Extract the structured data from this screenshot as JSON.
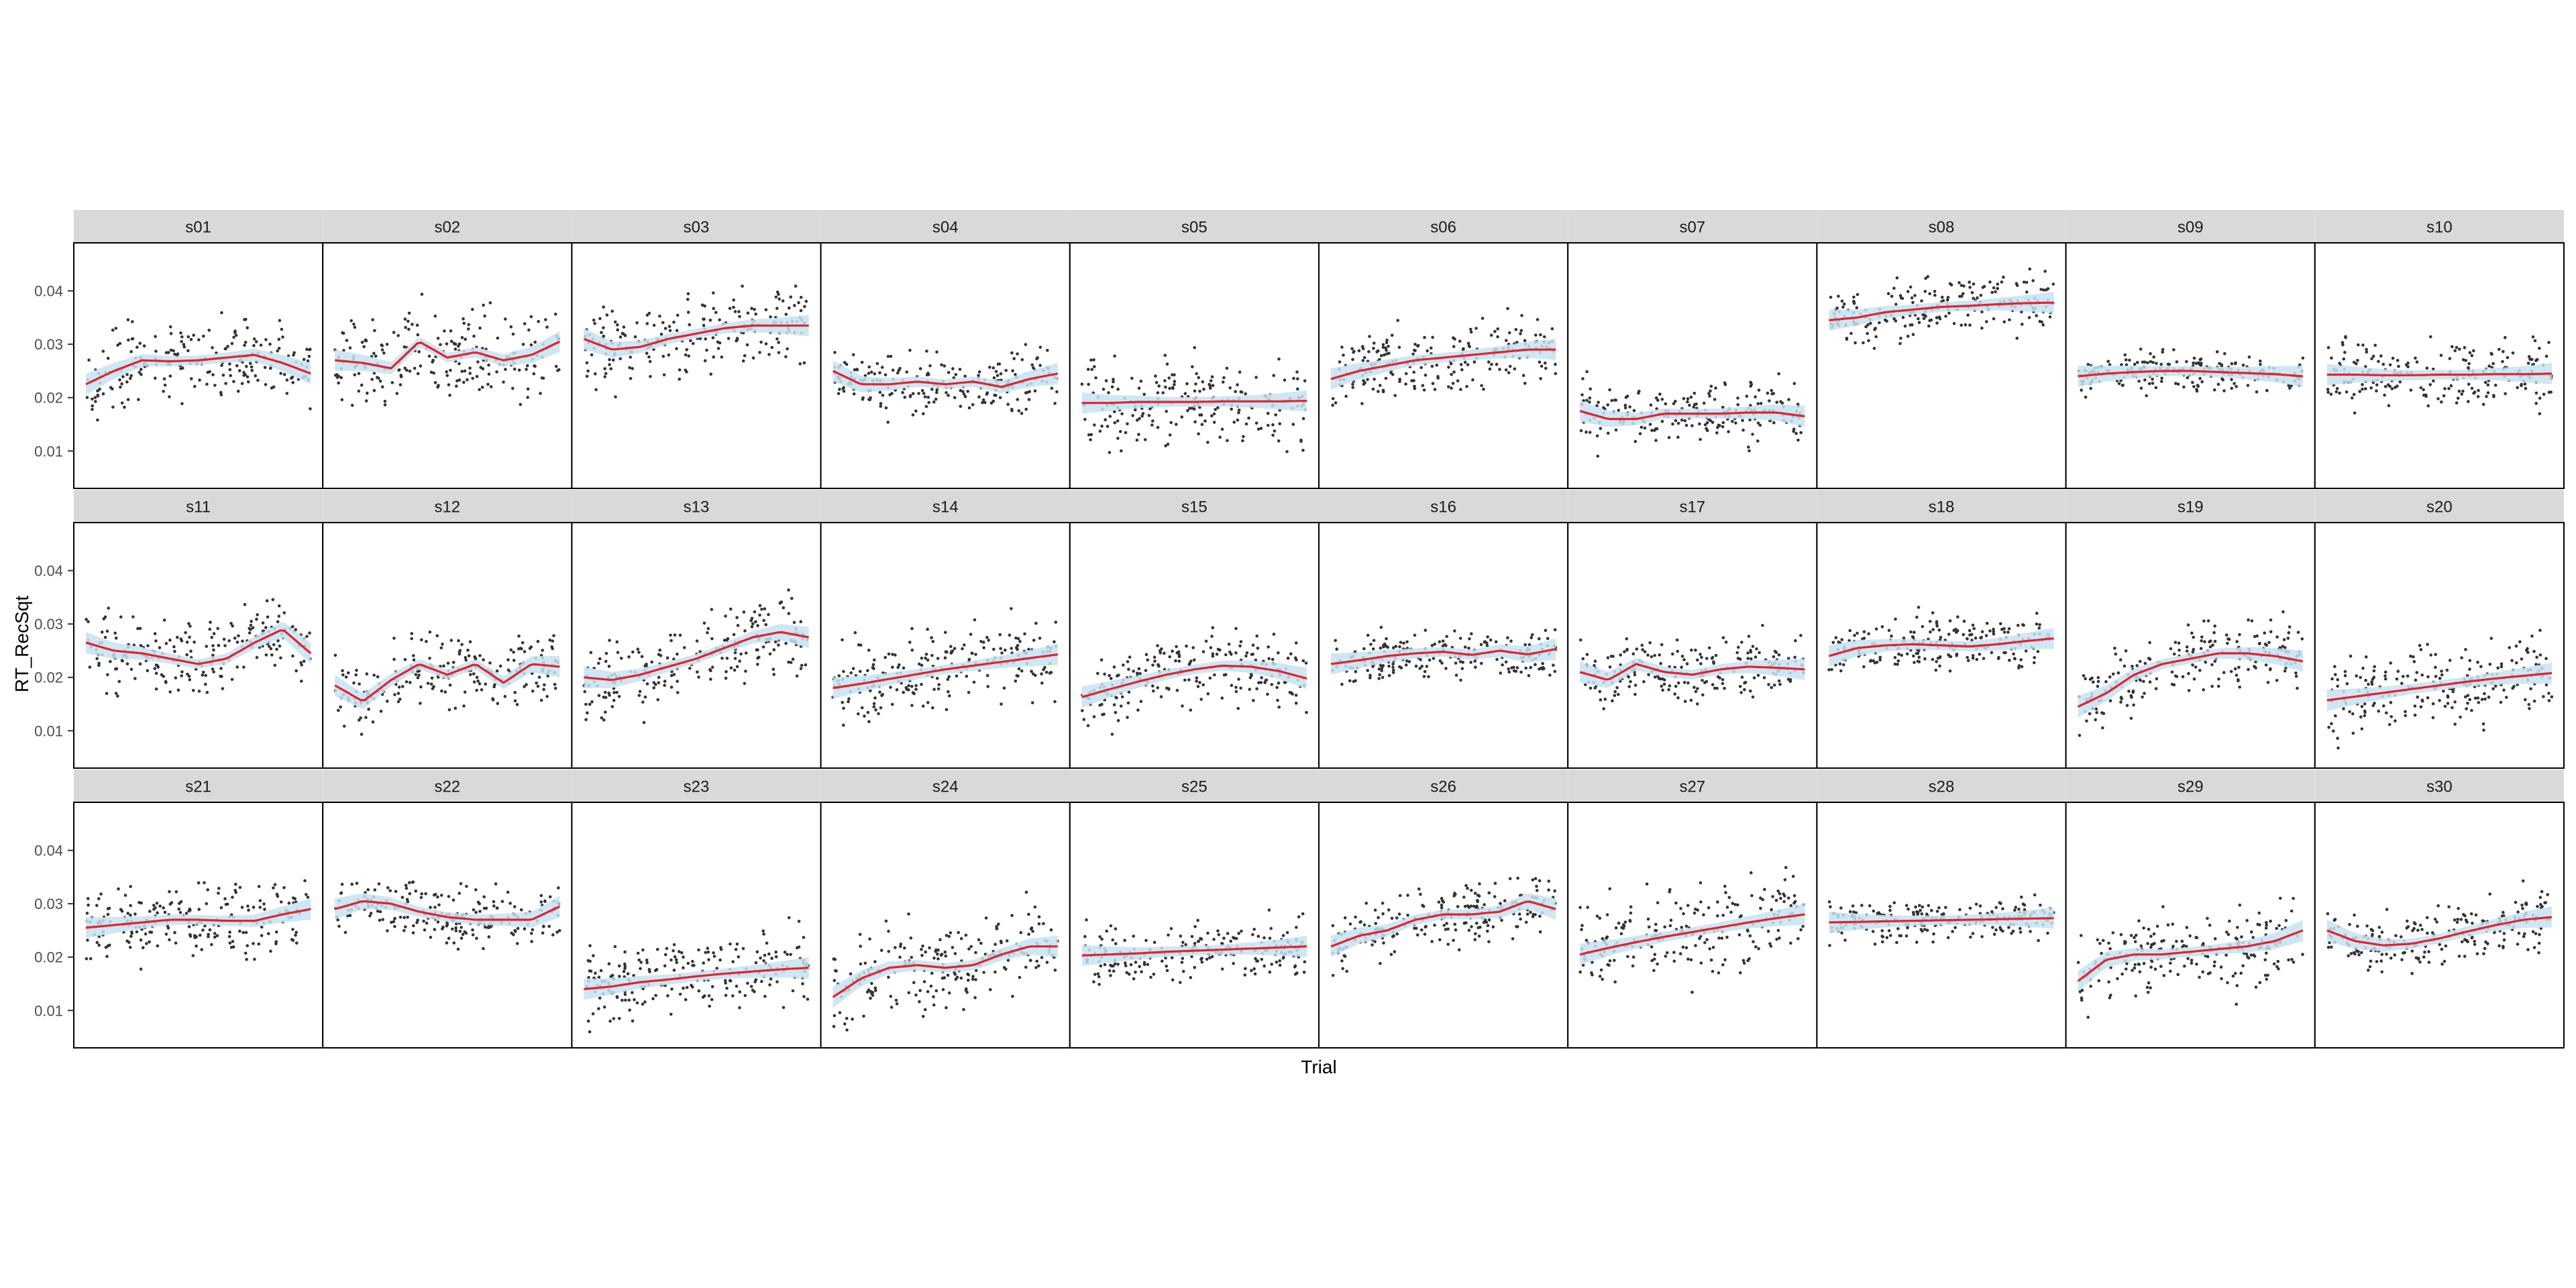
{
  "chart_data": {
    "type": "scatter",
    "layout": "faceted",
    "facet_rows": 3,
    "facet_cols": 10,
    "xlabel": "Trial",
    "ylabel": "RT_RecSqt",
    "ylim": [
      0.003,
      0.049
    ],
    "y_ticks": [
      "0.01",
      "0.02",
      "0.03",
      "0.04"
    ],
    "y_tick_values": [
      0.01,
      0.02,
      0.03,
      0.04
    ],
    "x_range": [
      0,
      1
    ],
    "grid": false,
    "colors": {
      "points": "#333333",
      "smooth_line": "#e8202a",
      "confidence_band": "#c6e3f2",
      "strip": "#d9d9d9",
      "panel_border": "#000000"
    },
    "panels": [
      {
        "label": "s01",
        "smooth": [
          0.0225,
          0.025,
          0.027,
          0.0268,
          0.027,
          0.0275,
          0.028,
          0.0265,
          0.0245
        ],
        "center": 0.026,
        "spread": 0.008
      },
      {
        "label": "s02",
        "smooth": [
          0.027,
          0.0265,
          0.0255,
          0.0305,
          0.0275,
          0.0285,
          0.027,
          0.028,
          0.0305
        ],
        "center": 0.027,
        "spread": 0.009
      },
      {
        "label": "s03",
        "smooth": [
          0.031,
          0.029,
          0.0295,
          0.031,
          0.032,
          0.033,
          0.0335,
          0.0335,
          0.0335
        ],
        "center": 0.032,
        "spread": 0.008
      },
      {
        "label": "s04",
        "smooth": [
          0.025,
          0.0225,
          0.0225,
          0.023,
          0.0225,
          0.023,
          0.022,
          0.0235,
          0.0245
        ],
        "center": 0.023,
        "spread": 0.006
      },
      {
        "label": "s05",
        "smooth": [
          0.019,
          0.019,
          0.0192,
          0.0192,
          0.0192,
          0.0193,
          0.0193,
          0.0193,
          0.0194
        ],
        "center": 0.0185,
        "spread": 0.009
      },
      {
        "label": "s06",
        "smooth": [
          0.0235,
          0.025,
          0.026,
          0.027,
          0.0275,
          0.028,
          0.0285,
          0.029,
          0.029
        ],
        "center": 0.0275,
        "spread": 0.007
      },
      {
        "label": "s07",
        "smooth": [
          0.0175,
          0.016,
          0.016,
          0.017,
          0.017,
          0.017,
          0.0172,
          0.0172,
          0.0165
        ],
        "center": 0.0165,
        "spread": 0.006
      },
      {
        "label": "s08",
        "smooth": [
          0.0345,
          0.035,
          0.036,
          0.0365,
          0.037,
          0.0372,
          0.0375,
          0.0377,
          0.0378
        ],
        "center": 0.036,
        "spread": 0.006
      },
      {
        "label": "s09",
        "smooth": [
          0.024,
          0.0245,
          0.0248,
          0.025,
          0.025,
          0.0248,
          0.0246,
          0.0244,
          0.024
        ],
        "center": 0.0245,
        "spread": 0.004
      },
      {
        "label": "s10",
        "smooth": [
          0.0243,
          0.0243,
          0.0242,
          0.0242,
          0.0243,
          0.0243,
          0.0244,
          0.0244,
          0.0245
        ],
        "center": 0.0245,
        "spread": 0.007
      },
      {
        "label": "s11",
        "smooth": [
          0.0265,
          0.025,
          0.0245,
          0.0235,
          0.0225,
          0.0235,
          0.0265,
          0.029,
          0.0245
        ],
        "center": 0.025,
        "spread": 0.008
      },
      {
        "label": "s12",
        "smooth": [
          0.0185,
          0.0155,
          0.0195,
          0.0225,
          0.0205,
          0.0225,
          0.019,
          0.0225,
          0.022
        ],
        "center": 0.02,
        "spread": 0.007
      },
      {
        "label": "s13",
        "smooth": [
          0.02,
          0.0195,
          0.0205,
          0.022,
          0.0235,
          0.0255,
          0.0275,
          0.0285,
          0.0275
        ],
        "center": 0.0235,
        "spread": 0.008
      },
      {
        "label": "s14",
        "smooth": [
          0.018,
          0.0188,
          0.0197,
          0.0206,
          0.0215,
          0.0222,
          0.0229,
          0.0236,
          0.0243
        ],
        "center": 0.021,
        "spread": 0.008
      },
      {
        "label": "s15",
        "smooth": [
          0.0163,
          0.0178,
          0.0192,
          0.0205,
          0.0215,
          0.0222,
          0.022,
          0.0212,
          0.0198
        ],
        "center": 0.02,
        "spread": 0.007
      },
      {
        "label": "s16",
        "smooth": [
          0.0225,
          0.0232,
          0.024,
          0.0245,
          0.0248,
          0.0242,
          0.025,
          0.0243,
          0.0253
        ],
        "center": 0.0245,
        "spread": 0.005
      },
      {
        "label": "s17",
        "smooth": [
          0.021,
          0.0195,
          0.0225,
          0.021,
          0.0205,
          0.0215,
          0.022,
          0.0218,
          0.0215
        ],
        "center": 0.021,
        "spread": 0.006
      },
      {
        "label": "s18",
        "smooth": [
          0.024,
          0.0255,
          0.026,
          0.0262,
          0.026,
          0.0258,
          0.0262,
          0.0268,
          0.0273
        ],
        "center": 0.026,
        "spread": 0.006
      },
      {
        "label": "s19",
        "smooth": [
          0.0145,
          0.017,
          0.0205,
          0.0225,
          0.0235,
          0.0245,
          0.0245,
          0.024,
          0.023
        ],
        "center": 0.021,
        "spread": 0.007
      },
      {
        "label": "s20",
        "smooth": [
          0.0157,
          0.0164,
          0.0171,
          0.0178,
          0.0185,
          0.0192,
          0.0198,
          0.0203,
          0.0208
        ],
        "center": 0.0185,
        "spread": 0.008
      },
      {
        "label": "s21",
        "smooth": [
          0.0255,
          0.026,
          0.0265,
          0.027,
          0.027,
          0.0268,
          0.0268,
          0.028,
          0.029
        ],
        "center": 0.027,
        "spread": 0.007
      },
      {
        "label": "s22",
        "smooth": [
          0.029,
          0.0305,
          0.03,
          0.0285,
          0.0275,
          0.027,
          0.027,
          0.027,
          0.0295
        ],
        "center": 0.028,
        "spread": 0.006
      },
      {
        "label": "s23",
        "smooth": [
          0.014,
          0.0145,
          0.0153,
          0.0158,
          0.0164,
          0.0169,
          0.0173,
          0.0177,
          0.018
        ],
        "center": 0.015,
        "spread": 0.008
      },
      {
        "label": "s24",
        "smooth": [
          0.0125,
          0.016,
          0.018,
          0.0185,
          0.018,
          0.0185,
          0.0205,
          0.022,
          0.022
        ],
        "center": 0.019,
        "spread": 0.009
      },
      {
        "label": "s25",
        "smooth": [
          0.0203,
          0.0205,
          0.0207,
          0.021,
          0.0212,
          0.0214,
          0.0216,
          0.0218,
          0.022
        ],
        "center": 0.0215,
        "spread": 0.006
      },
      {
        "label": "s26",
        "smooth": [
          0.022,
          0.024,
          0.025,
          0.027,
          0.028,
          0.028,
          0.0285,
          0.0305,
          0.029
        ],
        "center": 0.027,
        "spread": 0.006
      },
      {
        "label": "s27",
        "smooth": [
          0.0205,
          0.0217,
          0.0228,
          0.0238,
          0.0247,
          0.0256,
          0.0265,
          0.0273,
          0.028
        ],
        "center": 0.0245,
        "spread": 0.009
      },
      {
        "label": "s28",
        "smooth": [
          0.0265,
          0.0266,
          0.0267,
          0.0268,
          0.0269,
          0.027,
          0.0271,
          0.0272,
          0.0273
        ],
        "center": 0.027,
        "spread": 0.004
      },
      {
        "label": "s29",
        "smooth": [
          0.0155,
          0.0195,
          0.0205,
          0.0205,
          0.021,
          0.0215,
          0.022,
          0.023,
          0.025
        ],
        "center": 0.021,
        "spread": 0.008
      },
      {
        "label": "s30",
        "smooth": [
          0.025,
          0.023,
          0.0222,
          0.0225,
          0.0235,
          0.0248,
          0.026,
          0.027,
          0.0275
        ],
        "center": 0.025,
        "spread": 0.006
      }
    ]
  }
}
